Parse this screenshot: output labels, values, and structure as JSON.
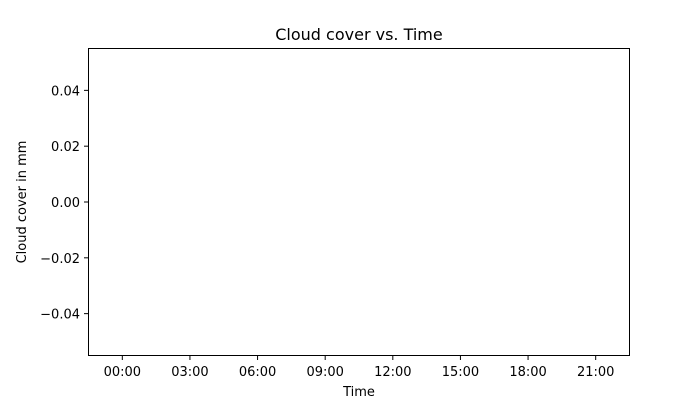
{
  "chart_data": {
    "type": "line",
    "title": "Cloud cover vs. Time",
    "xlabel": "Time",
    "ylabel": "Cloud cover in mm",
    "x_ticks": [
      "00:00",
      "03:00",
      "06:00",
      "09:00",
      "12:00",
      "15:00",
      "18:00",
      "21:00"
    ],
    "y_ticks": [
      "0.04",
      "0.02",
      "0.00",
      "−0.02",
      "−0.04"
    ],
    "y_tick_values": [
      0.04,
      0.02,
      0.0,
      -0.02,
      -0.04
    ],
    "ylim": [
      -0.055,
      0.055
    ],
    "xlim": [
      "-01:30",
      "22:30"
    ],
    "grid": false,
    "series": [],
    "colors": {
      "axis": "#000000",
      "background": "#ffffff"
    }
  }
}
